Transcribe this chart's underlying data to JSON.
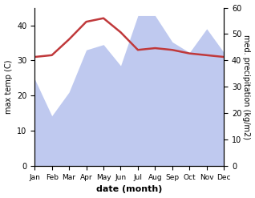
{
  "months": [
    "Jan",
    "Feb",
    "Mar",
    "Apr",
    "May",
    "Jun",
    "Jul",
    "Aug",
    "Sep",
    "Oct",
    "Nov",
    "Dec"
  ],
  "temperature": [
    31,
    31.5,
    36,
    41,
    42,
    38,
    33,
    33.5,
    33,
    32,
    31.5,
    31
  ],
  "precipitation": [
    33,
    19,
    28,
    44,
    46,
    38,
    57,
    57,
    47,
    43,
    52,
    43
  ],
  "temp_color": "#c0393b",
  "precip_fill_color": "#b8c4ee",
  "xlabel": "date (month)",
  "ylabel_left": "max temp (C)",
  "ylabel_right": "med. precipitation (kg/m2)",
  "ylim_left": [
    0,
    45
  ],
  "ylim_right": [
    0,
    60
  ],
  "yticks_left": [
    0,
    10,
    20,
    30,
    40
  ],
  "yticks_right": [
    0,
    10,
    20,
    30,
    40,
    50,
    60
  ],
  "figsize": [
    3.18,
    2.47
  ],
  "dpi": 100
}
